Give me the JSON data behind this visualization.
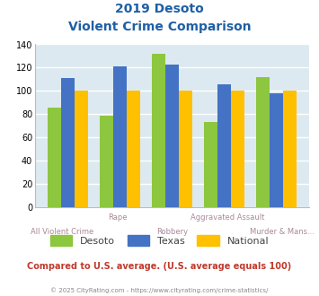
{
  "title_line1": "2019 Desoto",
  "title_line2": "Violent Crime Comparison",
  "categories": [
    "All Violent Crime",
    "Rape",
    "Robbery",
    "Aggravated Assault",
    "Murder & Mans..."
  ],
  "desoto": [
    86,
    79,
    132,
    73,
    112
  ],
  "texas": [
    111,
    121,
    123,
    106,
    98
  ],
  "national": [
    100,
    100,
    100,
    100,
    100
  ],
  "color_desoto": "#8dc63f",
  "color_texas": "#4472c4",
  "color_national": "#ffc000",
  "ylim": [
    0,
    140
  ],
  "yticks": [
    0,
    20,
    40,
    60,
    80,
    100,
    120,
    140
  ],
  "title_color": "#1f5fa6",
  "subtitle_color": "#1f5fa6",
  "note_text": "Compared to U.S. average. (U.S. average equals 100)",
  "footer_text": "© 2025 CityRating.com - https://www.cityrating.com/crime-statistics/",
  "note_color": "#c0392b",
  "footer_color": "#888888",
  "bg_color": "#dce9f0",
  "fig_bg": "#ffffff",
  "legend_labels": [
    "Desoto",
    "Texas",
    "National"
  ],
  "grid_color": "#ffffff",
  "label_top": [
    "",
    "Rape",
    "",
    "Aggravated Assault",
    ""
  ],
  "label_bottom": [
    "All Violent Crime",
    "",
    "Robbery",
    "",
    "Murder & Mans..."
  ]
}
